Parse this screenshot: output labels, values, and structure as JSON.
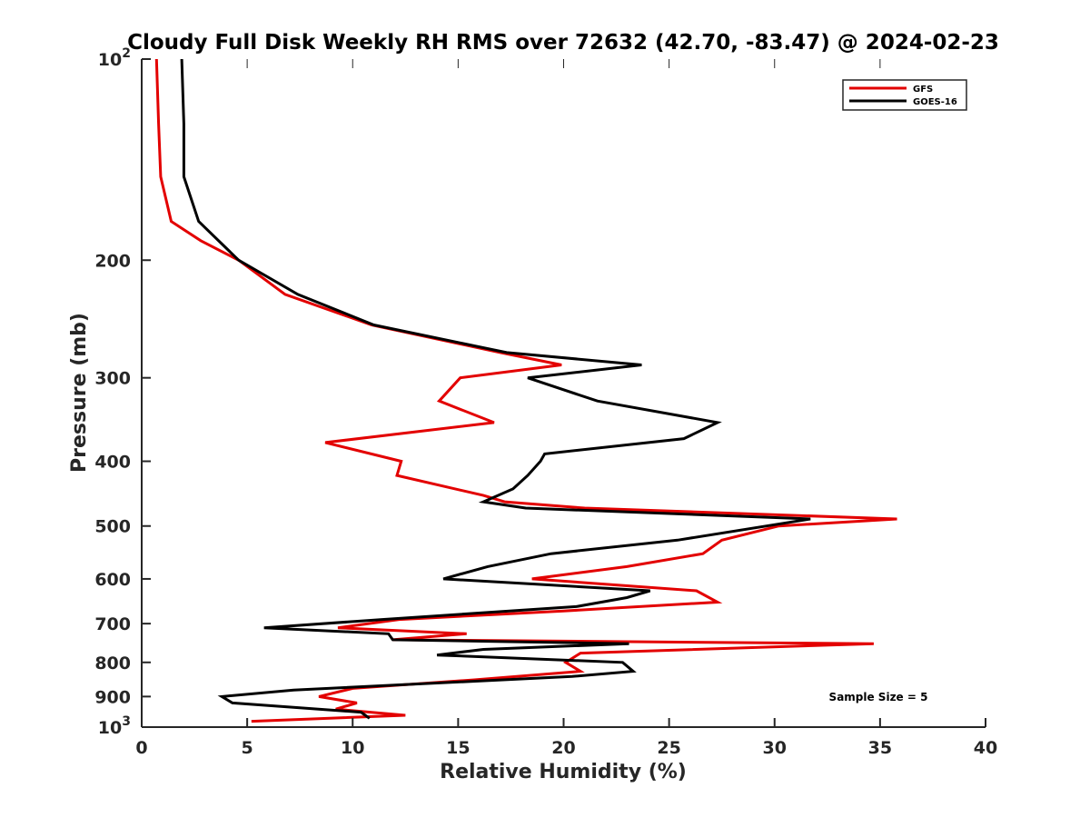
{
  "chart_data": {
    "type": "line",
    "title": "Cloudy Full Disk Weekly RH RMS over 72632 (42.70, -83.47) @ 2024-02-23",
    "xlabel": "Relative Humidity (%)",
    "ylabel": "Pressure (mb)",
    "xlim": [
      0,
      40
    ],
    "ylim": [
      100,
      1000
    ],
    "yscale": "log",
    "y_reversed": true,
    "grid": false,
    "legend_position": "top-right",
    "x_ticks": [
      "0",
      "5",
      "10",
      "15",
      "20",
      "25",
      "30",
      "35",
      "40"
    ],
    "y_ticks": [
      {
        "value": 100,
        "base": "10",
        "exp": "2"
      },
      {
        "value": 200,
        "label": "200"
      },
      {
        "value": 300,
        "label": "300"
      },
      {
        "value": 400,
        "label": "400"
      },
      {
        "value": 500,
        "label": "500"
      },
      {
        "value": 600,
        "label": "600"
      },
      {
        "value": 700,
        "label": "700"
      },
      {
        "value": 800,
        "label": "800"
      },
      {
        "value": 900,
        "label": "900"
      },
      {
        "value": 1000,
        "base": "10",
        "exp": "3"
      }
    ],
    "annotation": "Sample Size = 5",
    "series": [
      {
        "name": "GFS",
        "color": "#e30000",
        "points": [
          [
            0.7,
            100
          ],
          [
            0.8,
            125
          ],
          [
            0.9,
            150
          ],
          [
            1.4,
            175
          ],
          [
            2.8,
            187
          ],
          [
            4.6,
            200
          ],
          [
            6.8,
            225
          ],
          [
            10.9,
            250
          ],
          [
            17.0,
            275
          ],
          [
            19.9,
            287
          ],
          [
            15.1,
            300
          ],
          [
            14.1,
            325
          ],
          [
            16.7,
            350
          ],
          [
            8.7,
            375
          ],
          [
            12.3,
            400
          ],
          [
            12.1,
            420
          ],
          [
            16.2,
            450
          ],
          [
            17.2,
            460
          ],
          [
            21.0,
            470
          ],
          [
            35.8,
            488
          ],
          [
            30.2,
            500
          ],
          [
            27.5,
            525
          ],
          [
            26.6,
            550
          ],
          [
            23.0,
            575
          ],
          [
            18.5,
            600
          ],
          [
            26.3,
            625
          ],
          [
            27.3,
            650
          ],
          [
            20.0,
            670
          ],
          [
            12.2,
            690
          ],
          [
            9.3,
            710
          ],
          [
            15.4,
            725
          ],
          [
            11.9,
            740
          ],
          [
            34.7,
            750
          ],
          [
            20.8,
            775
          ],
          [
            20.1,
            800
          ],
          [
            20.8,
            825
          ],
          [
            15.7,
            850
          ],
          [
            10.0,
            875
          ],
          [
            8.4,
            900
          ],
          [
            10.2,
            920
          ],
          [
            9.2,
            940
          ],
          [
            12.5,
            960
          ],
          [
            5.2,
            980
          ]
        ]
      },
      {
        "name": "GOES-16",
        "color": "#000000",
        "points": [
          [
            1.9,
            100
          ],
          [
            2.0,
            125
          ],
          [
            2.0,
            150
          ],
          [
            2.7,
            175
          ],
          [
            4.6,
            200
          ],
          [
            7.4,
            225
          ],
          [
            11.0,
            250
          ],
          [
            17.3,
            275
          ],
          [
            23.7,
            287
          ],
          [
            18.3,
            300
          ],
          [
            21.6,
            325
          ],
          [
            27.3,
            350
          ],
          [
            25.7,
            370
          ],
          [
            19.1,
            390
          ],
          [
            18.9,
            400
          ],
          [
            18.3,
            420
          ],
          [
            17.6,
            440
          ],
          [
            16.2,
            460
          ],
          [
            18.2,
            470
          ],
          [
            31.7,
            488
          ],
          [
            25.4,
            525
          ],
          [
            19.4,
            550
          ],
          [
            16.4,
            575
          ],
          [
            14.3,
            600
          ],
          [
            24.1,
            625
          ],
          [
            23.0,
            640
          ],
          [
            20.6,
            660
          ],
          [
            11.4,
            690
          ],
          [
            5.8,
            710
          ],
          [
            11.7,
            725
          ],
          [
            11.9,
            740
          ],
          [
            23.1,
            750
          ],
          [
            16.2,
            765
          ],
          [
            14.0,
            780
          ],
          [
            22.8,
            800
          ],
          [
            23.3,
            825
          ],
          [
            20.4,
            840
          ],
          [
            7.2,
            880
          ],
          [
            3.8,
            900
          ],
          [
            4.3,
            920
          ],
          [
            10.4,
            950
          ],
          [
            10.8,
            970
          ]
        ]
      }
    ]
  }
}
